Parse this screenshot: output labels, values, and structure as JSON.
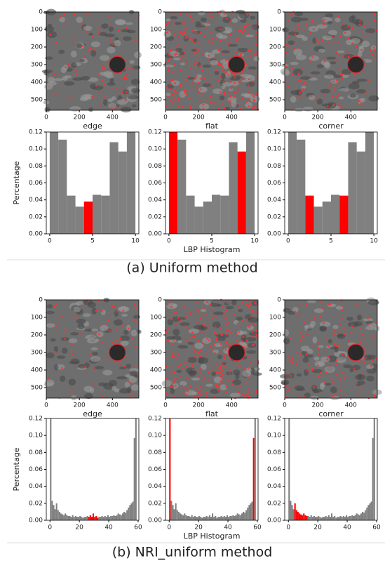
{
  "captions": [
    "(a) Uniform method",
    "(b) NRI_uniform method"
  ],
  "chart_data": [
    {
      "type": "image",
      "xlabel": "edge",
      "xlim": [
        0,
        560
      ],
      "ylim": [
        0,
        560
      ],
      "xticks": [
        0,
        200,
        400
      ],
      "yticks": [
        0,
        100,
        200,
        300,
        400,
        500
      ],
      "density": 0.25
    },
    {
      "type": "image",
      "xlabel": "flat",
      "xlim": [
        0,
        560
      ],
      "ylim": [
        0,
        560
      ],
      "xticks": [
        0,
        200,
        400
      ],
      "yticks": [
        0,
        100,
        200,
        300,
        400,
        500
      ],
      "density": 1
    },
    {
      "type": "image",
      "xlabel": "corner",
      "xlim": [
        0,
        560
      ],
      "ylim": [
        0,
        560
      ],
      "xticks": [
        0,
        200,
        400
      ],
      "yticks": [
        0,
        100,
        200,
        300,
        400,
        500
      ],
      "density": 0.45
    },
    {
      "type": "histogram",
      "ylabel": "Percentage",
      "bins": [
        0,
        1,
        2,
        3,
        4,
        5,
        6,
        7,
        8,
        9,
        10
      ],
      "values": [
        0.12,
        0.111,
        0.045,
        0.032,
        0.038,
        0.046,
        0.045,
        0.108,
        0.097,
        0.12
      ],
      "color": "#808080",
      "highlight_color": "#ff0000",
      "highlight": [
        4
      ],
      "xlim": [
        -0.4,
        10.4
      ],
      "ylim": [
        0,
        0.12
      ],
      "xticks": [
        0,
        5,
        10
      ],
      "yticks": [
        {
          "value": 0,
          "label": "0.00"
        },
        {
          "value": 0.02,
          "label": "0.02"
        },
        {
          "value": 0.04,
          "label": "0.04"
        },
        {
          "value": 0.06,
          "label": "0.06"
        },
        {
          "value": 0.08,
          "label": "0.08"
        },
        {
          "value": 0.1,
          "label": "0.10"
        },
        {
          "value": 0.12,
          "label": "0.12"
        }
      ]
    },
    {
      "type": "histogram",
      "xlabel": "LBP Histogram",
      "bins": [
        0,
        1,
        2,
        3,
        4,
        5,
        6,
        7,
        8,
        9,
        10
      ],
      "values": [
        0.12,
        0.111,
        0.045,
        0.032,
        0.038,
        0.046,
        0.045,
        0.108,
        0.097,
        0.12
      ],
      "color": "#808080",
      "highlight_color": "#ff0000",
      "highlight": [
        0,
        8
      ],
      "xlim": [
        -0.4,
        10.4
      ],
      "ylim": [
        0,
        0.12
      ],
      "xticks": [
        0,
        5,
        10
      ],
      "yticks": [
        {
          "value": 0,
          "label": "0.00"
        },
        {
          "value": 0.02,
          "label": "0.02"
        },
        {
          "value": 0.04,
          "label": "0.04"
        },
        {
          "value": 0.06,
          "label": "0.06"
        },
        {
          "value": 0.08,
          "label": "0.08"
        },
        {
          "value": 0.1,
          "label": "0.10"
        },
        {
          "value": 0.12,
          "label": "0.12"
        }
      ]
    },
    {
      "type": "histogram",
      "bins": [
        0,
        1,
        2,
        3,
        4,
        5,
        6,
        7,
        8,
        9,
        10
      ],
      "values": [
        0.12,
        0.111,
        0.045,
        0.032,
        0.038,
        0.046,
        0.045,
        0.108,
        0.097,
        0.12
      ],
      "color": "#808080",
      "highlight_color": "#ff0000",
      "highlight": [
        2,
        6
      ],
      "xlim": [
        -0.4,
        10.4
      ],
      "ylim": [
        0,
        0.12
      ],
      "xticks": [
        0,
        5,
        10
      ],
      "yticks": [
        {
          "value": 0,
          "label": "0.00"
        },
        {
          "value": 0.02,
          "label": "0.02"
        },
        {
          "value": 0.04,
          "label": "0.04"
        },
        {
          "value": 0.06,
          "label": "0.06"
        },
        {
          "value": 0.08,
          "label": "0.08"
        },
        {
          "value": 0.1,
          "label": "0.10"
        },
        {
          "value": 0.12,
          "label": "0.12"
        }
      ]
    },
    {
      "type": "image",
      "xlabel": "edge",
      "xlim": [
        0,
        560
      ],
      "ylim": [
        0,
        560
      ],
      "xticks": [
        0,
        200,
        400
      ],
      "yticks": [
        0,
        100,
        200,
        300,
        400,
        500
      ],
      "density": 0.25
    },
    {
      "type": "image",
      "xlabel": "flat",
      "xlim": [
        0,
        560
      ],
      "ylim": [
        0,
        560
      ],
      "xticks": [
        0,
        200,
        400
      ],
      "yticks": [
        0,
        100,
        200,
        300,
        400,
        500
      ],
      "density": 1
    },
    {
      "type": "image",
      "xlabel": "corner",
      "xlim": [
        0,
        560
      ],
      "ylim": [
        0,
        560
      ],
      "xticks": [
        0,
        200,
        400
      ],
      "yticks": [
        0,
        100,
        200,
        300,
        400,
        500
      ],
      "density": 0.45
    },
    {
      "type": "histogram",
      "ylabel": "Percentage",
      "bins": [
        0,
        1,
        2,
        3,
        4,
        5,
        6,
        7,
        8,
        9,
        10,
        11,
        12,
        13,
        14,
        15,
        16,
        17,
        18,
        19,
        20,
        21,
        22,
        23,
        24,
        25,
        26,
        27,
        28,
        29,
        30,
        31,
        32,
        33,
        34,
        35,
        36,
        37,
        38,
        39,
        40,
        41,
        42,
        43,
        44,
        45,
        46,
        47,
        48,
        49,
        50,
        51,
        52,
        53,
        54,
        55,
        56,
        57,
        58,
        59
      ],
      "values": [
        0.12,
        0.023,
        0.018,
        0.013,
        0.02,
        0.012,
        0.01,
        0.008,
        0.007,
        0.006,
        0.008,
        0.006,
        0.005,
        0.005,
        0.004,
        0.006,
        0.004,
        0.005,
        0.004,
        0.004,
        0.005,
        0.004,
        0.003,
        0.004,
        0.004,
        0.005,
        0.004,
        0.006,
        0.004,
        0.008,
        0.004,
        0.005,
        0.003,
        0.004,
        0.004,
        0.005,
        0.004,
        0.005,
        0.004,
        0.006,
        0.004,
        0.005,
        0.005,
        0.006,
        0.005,
        0.006,
        0.008,
        0.007,
        0.006,
        0.008,
        0.01,
        0.009,
        0.012,
        0.015,
        0.018,
        0.02,
        0.022,
        0.097,
        0.12
      ],
      "color": "#808080",
      "highlight_color": "#ff0000",
      "highlight": [
        26,
        27,
        28,
        29,
        30,
        31,
        32
      ],
      "xlim": [
        -2.5,
        60.5
      ],
      "ylim": [
        0,
        0.12
      ],
      "xticks": [
        0,
        20,
        40,
        60
      ],
      "yticks": [
        {
          "value": 0,
          "label": "0.00"
        },
        {
          "value": 0.02,
          "label": "0.02"
        },
        {
          "value": 0.04,
          "label": "0.04"
        },
        {
          "value": 0.06,
          "label": "0.06"
        },
        {
          "value": 0.08,
          "label": "0.08"
        },
        {
          "value": 0.1,
          "label": "0.10"
        },
        {
          "value": 0.12,
          "label": "0.12"
        }
      ]
    },
    {
      "type": "histogram",
      "xlabel": "LBP Histogram",
      "bins": [
        0,
        1,
        2,
        3,
        4,
        5,
        6,
        7,
        8,
        9,
        10,
        11,
        12,
        13,
        14,
        15,
        16,
        17,
        18,
        19,
        20,
        21,
        22,
        23,
        24,
        25,
        26,
        27,
        28,
        29,
        30,
        31,
        32,
        33,
        34,
        35,
        36,
        37,
        38,
        39,
        40,
        41,
        42,
        43,
        44,
        45,
        46,
        47,
        48,
        49,
        50,
        51,
        52,
        53,
        54,
        55,
        56,
        57,
        58,
        59
      ],
      "values": [
        0.12,
        0.023,
        0.018,
        0.013,
        0.02,
        0.012,
        0.01,
        0.008,
        0.007,
        0.006,
        0.008,
        0.006,
        0.005,
        0.005,
        0.004,
        0.006,
        0.004,
        0.005,
        0.004,
        0.004,
        0.005,
        0.004,
        0.003,
        0.004,
        0.004,
        0.005,
        0.004,
        0.006,
        0.004,
        0.008,
        0.004,
        0.005,
        0.003,
        0.004,
        0.004,
        0.005,
        0.004,
        0.005,
        0.004,
        0.006,
        0.004,
        0.005,
        0.005,
        0.006,
        0.005,
        0.006,
        0.008,
        0.007,
        0.006,
        0.008,
        0.01,
        0.009,
        0.012,
        0.015,
        0.018,
        0.02,
        0.022,
        0.097,
        0.12
      ],
      "color": "#808080",
      "highlight_color": "#ff0000",
      "highlight": [
        0,
        57
      ],
      "xlim": [
        -2.5,
        60.5
      ],
      "ylim": [
        0,
        0.12
      ],
      "xticks": [
        0,
        20,
        40,
        60
      ],
      "yticks": [
        {
          "value": 0,
          "label": "0.00"
        },
        {
          "value": 0.02,
          "label": "0.02"
        },
        {
          "value": 0.04,
          "label": "0.04"
        },
        {
          "value": 0.06,
          "label": "0.06"
        },
        {
          "value": 0.08,
          "label": "0.08"
        },
        {
          "value": 0.1,
          "label": "0.10"
        },
        {
          "value": 0.12,
          "label": "0.12"
        }
      ]
    },
    {
      "type": "histogram",
      "bins": [
        0,
        1,
        2,
        3,
        4,
        5,
        6,
        7,
        8,
        9,
        10,
        11,
        12,
        13,
        14,
        15,
        16,
        17,
        18,
        19,
        20,
        21,
        22,
        23,
        24,
        25,
        26,
        27,
        28,
        29,
        30,
        31,
        32,
        33,
        34,
        35,
        36,
        37,
        38,
        39,
        40,
        41,
        42,
        43,
        44,
        45,
        46,
        47,
        48,
        49,
        50,
        51,
        52,
        53,
        54,
        55,
        56,
        57,
        58,
        59
      ],
      "values": [
        0.12,
        0.023,
        0.018,
        0.013,
        0.02,
        0.012,
        0.01,
        0.008,
        0.007,
        0.006,
        0.008,
        0.006,
        0.005,
        0.005,
        0.004,
        0.006,
        0.004,
        0.005,
        0.004,
        0.004,
        0.005,
        0.004,
        0.003,
        0.004,
        0.004,
        0.005,
        0.004,
        0.006,
        0.004,
        0.008,
        0.004,
        0.005,
        0.003,
        0.004,
        0.004,
        0.005,
        0.004,
        0.005,
        0.004,
        0.006,
        0.004,
        0.005,
        0.005,
        0.006,
        0.005,
        0.006,
        0.008,
        0.007,
        0.006,
        0.008,
        0.01,
        0.009,
        0.012,
        0.015,
        0.018,
        0.02,
        0.022,
        0.097,
        0.12
      ],
      "color": "#808080",
      "highlight_color": "#ff0000",
      "highlight": [
        4,
        5,
        6,
        7,
        8,
        9,
        10,
        11,
        12
      ],
      "xlim": [
        -2.5,
        60.5
      ],
      "ylim": [
        0,
        0.12
      ],
      "xticks": [
        0,
        20,
        40,
        60
      ],
      "yticks": [
        {
          "value": 0,
          "label": "0.00"
        },
        {
          "value": 0.02,
          "label": "0.02"
        },
        {
          "value": 0.04,
          "label": "0.04"
        },
        {
          "value": 0.06,
          "label": "0.06"
        },
        {
          "value": 0.08,
          "label": "0.08"
        },
        {
          "value": 0.1,
          "label": "0.10"
        },
        {
          "value": 0.12,
          "label": "0.12"
        }
      ]
    }
  ]
}
